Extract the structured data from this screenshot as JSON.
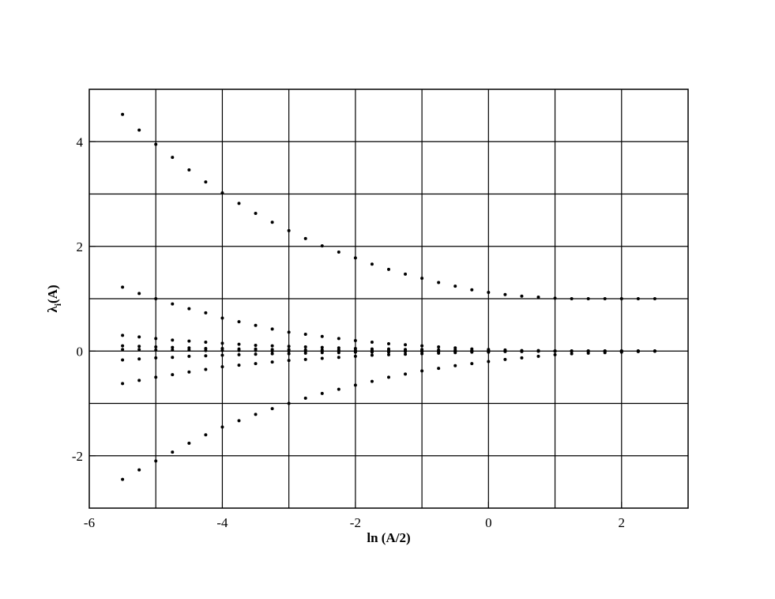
{
  "chart_data": {
    "type": "scatter",
    "xlabel": "ln (A/2)",
    "ylabel": {
      "symbol": "λ",
      "subscript": "i",
      "rest": "(A)"
    },
    "xlim": [
      -6,
      3
    ],
    "ylim": [
      -3,
      5
    ],
    "xticks": [
      -6,
      -4,
      -2,
      0,
      2
    ],
    "yticks": [
      -2,
      0,
      2,
      4
    ],
    "xgrid": [
      -5,
      -4,
      -3,
      -2,
      -1,
      0,
      1,
      2
    ],
    "ygrid": [
      -2,
      -1,
      0,
      1,
      2,
      3,
      4
    ],
    "grid": true,
    "x": [
      -5.5,
      -5.25,
      -5,
      -4.75,
      -4.5,
      -4.25,
      -4,
      -3.75,
      -3.5,
      -3.25,
      -3,
      -2.75,
      -2.5,
      -2.25,
      -2,
      -1.75,
      -1.5,
      -1.25,
      -1,
      -0.75,
      -0.5,
      -0.25,
      0,
      0.25,
      0.5,
      0.75,
      1,
      1.25,
      1.5,
      1.75,
      2,
      2.25,
      2.5
    ],
    "series": [
      {
        "color": "#000000",
        "values": [
          4.52,
          4.22,
          3.95,
          3.7,
          3.46,
          3.23,
          3.02,
          2.82,
          2.63,
          2.46,
          2.3,
          2.15,
          2.01,
          1.89,
          1.78,
          1.66,
          1.56,
          1.47,
          1.39,
          1.31,
          1.24,
          1.17,
          1.12,
          1.08,
          1.05,
          1.03,
          1.01,
          1,
          1,
          1,
          1,
          1,
          1
        ]
      },
      {
        "color": "#000000",
        "values": [
          1.22,
          1.1,
          1,
          0.9,
          0.81,
          0.73,
          0.63,
          0.56,
          0.49,
          0.42,
          0.36,
          0.32,
          0.28,
          0.24,
          0.2,
          0.17,
          0.14,
          0.12,
          0.1,
          0.08,
          0.06,
          0.04,
          0.03,
          0.02,
          0.01,
          0.01,
          0,
          0,
          0,
          0,
          0,
          0,
          0
        ]
      },
      {
        "color": "#000000",
        "values": [
          0.3,
          0.27,
          0.24,
          0.21,
          0.19,
          0.17,
          0.15,
          0.13,
          0.11,
          0.1,
          0.09,
          0.08,
          0.07,
          0.06,
          0.05,
          0.04,
          0.04,
          0.03,
          0.03,
          0.02,
          0.02,
          0.01,
          0.01,
          0.01,
          0,
          0,
          0,
          0,
          0,
          0,
          0,
          0,
          0
        ]
      },
      {
        "color": "#000000",
        "values": [
          0.1,
          0.09,
          0.08,
          0.07,
          0.06,
          0.05,
          0.05,
          0.04,
          0.04,
          0.03,
          0.03,
          0.02,
          0.02,
          0.02,
          0.01,
          0.01,
          0.01,
          0.01,
          0,
          0,
          0,
          0,
          0,
          0,
          0,
          0,
          0,
          0,
          0,
          0,
          0,
          0,
          0
        ]
      },
      {
        "color": "#000000",
        "values": [
          0.03,
          0.03,
          0.02,
          0.02,
          0.02,
          0.01,
          0.01,
          0.01,
          0.01,
          0,
          0,
          0,
          0,
          0,
          0,
          0,
          0,
          0,
          0,
          0,
          0,
          0,
          0,
          0,
          0,
          0,
          0,
          0,
          0,
          0,
          0,
          0,
          0
        ]
      },
      {
        "color": "#000000",
        "values": [
          -0.17,
          -0.15,
          -0.13,
          -0.12,
          -0.1,
          -0.09,
          -0.08,
          -0.07,
          -0.06,
          -0.05,
          -0.05,
          -0.04,
          -0.03,
          -0.03,
          -0.02,
          -0.02,
          -0.02,
          -0.01,
          -0.01,
          -0.01,
          -0.01,
          0,
          0,
          0,
          0,
          0,
          0,
          0,
          0,
          0,
          0,
          0,
          0
        ]
      },
      {
        "color": "#000000",
        "values": [
          -0.62,
          -0.56,
          -0.5,
          -0.45,
          -0.4,
          -0.35,
          -0.3,
          -0.27,
          -0.24,
          -0.21,
          -0.18,
          -0.16,
          -0.14,
          -0.12,
          -0.1,
          -0.08,
          -0.07,
          -0.06,
          -0.05,
          -0.04,
          -0.03,
          -0.02,
          -0.02,
          -0.01,
          -0.01,
          0,
          0,
          0,
          0,
          0,
          0,
          0,
          0
        ]
      },
      {
        "color": "#000000",
        "values": [
          -2.45,
          -2.27,
          -2.1,
          -1.93,
          -1.76,
          -1.6,
          -1.45,
          -1.33,
          -1.21,
          -1.1,
          -1,
          -0.9,
          -0.81,
          -0.73,
          -0.65,
          -0.58,
          -0.5,
          -0.44,
          -0.38,
          -0.33,
          -0.28,
          -0.24,
          -0.2,
          -0.16,
          -0.13,
          -0.1,
          -0.07,
          -0.05,
          -0.04,
          -0.03,
          -0.02,
          -0.01,
          0
        ]
      }
    ]
  }
}
